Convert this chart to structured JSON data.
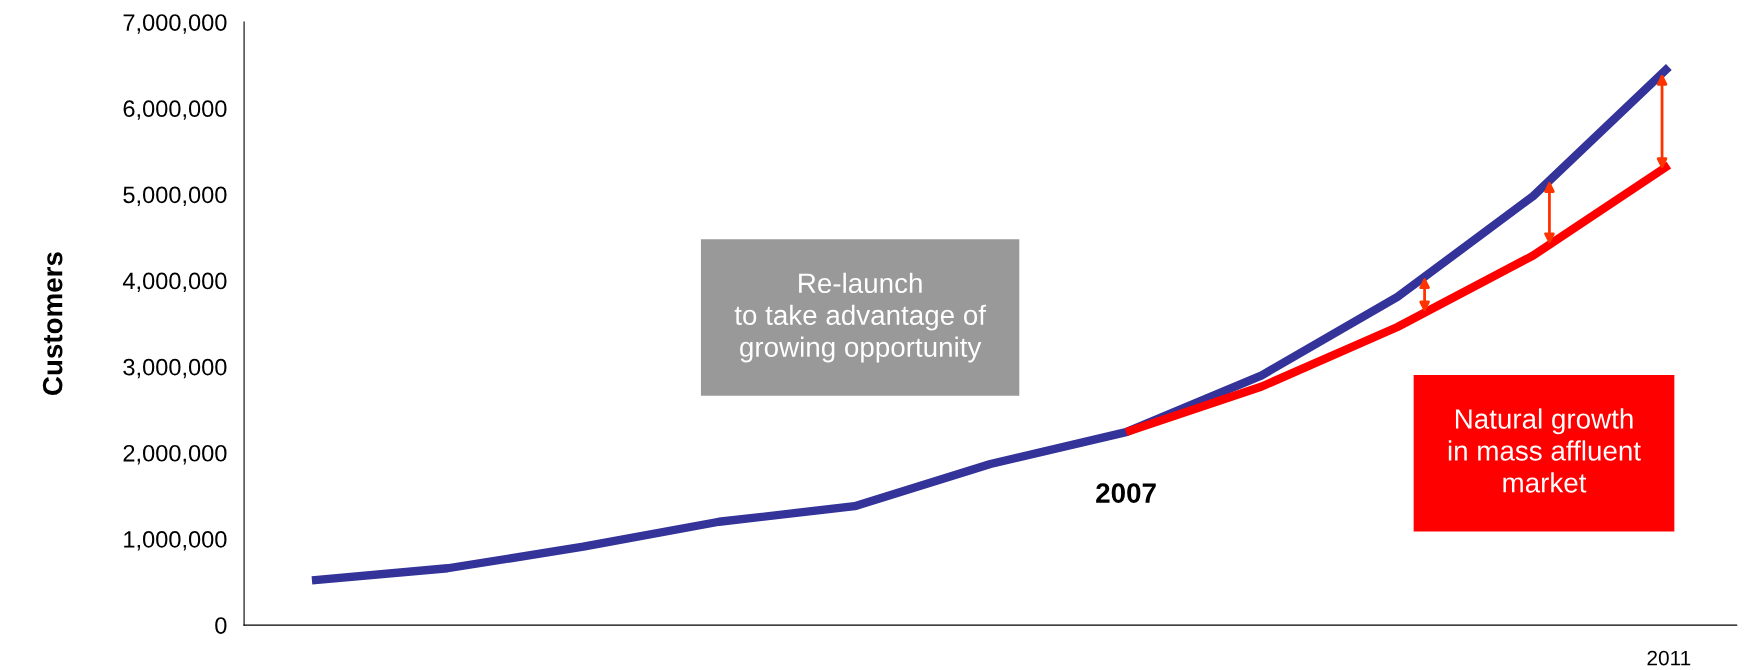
{
  "chart_data": {
    "type": "line",
    "ylabel": "Customers",
    "categories": [
      null,
      null,
      null,
      null,
      null,
      null,
      null,
      null,
      null,
      null,
      "2011"
    ],
    "series": [
      {
        "color": "#333399",
        "values": [
          520000,
          660000,
          910000,
          1200000,
          1380000,
          1870000,
          2240000,
          2900000,
          3810000,
          4980000,
          6480000
        ]
      },
      {
        "color": "#ff0000",
        "values": [
          null,
          null,
          null,
          null,
          null,
          null,
          2240000,
          2770000,
          3460000,
          4290000,
          5340000
        ]
      }
    ],
    "ylim": [
      0,
      7000000
    ],
    "yticks": [
      {
        "value": 0,
        "label": "0"
      },
      {
        "value": 1000000,
        "label": "1,000,000"
      },
      {
        "value": 2000000,
        "label": "2,000,000"
      },
      {
        "value": 3000000,
        "label": "3,000,000"
      },
      {
        "value": 4000000,
        "label": "4,000,000"
      },
      {
        "value": 5000000,
        "label": "5,000,000"
      },
      {
        "value": 6000000,
        "label": "6,000,000"
      },
      {
        "value": 7000000,
        "label": "7,000,000"
      }
    ],
    "annotations": [
      "Re-launch\nto take advantage of\ngrowing opportunity",
      "2007",
      "Natural growth\nin mass affluent\nmarket"
    ],
    "grid": false,
    "legend": false,
    "marker": "none",
    "line_style": "solid"
  }
}
